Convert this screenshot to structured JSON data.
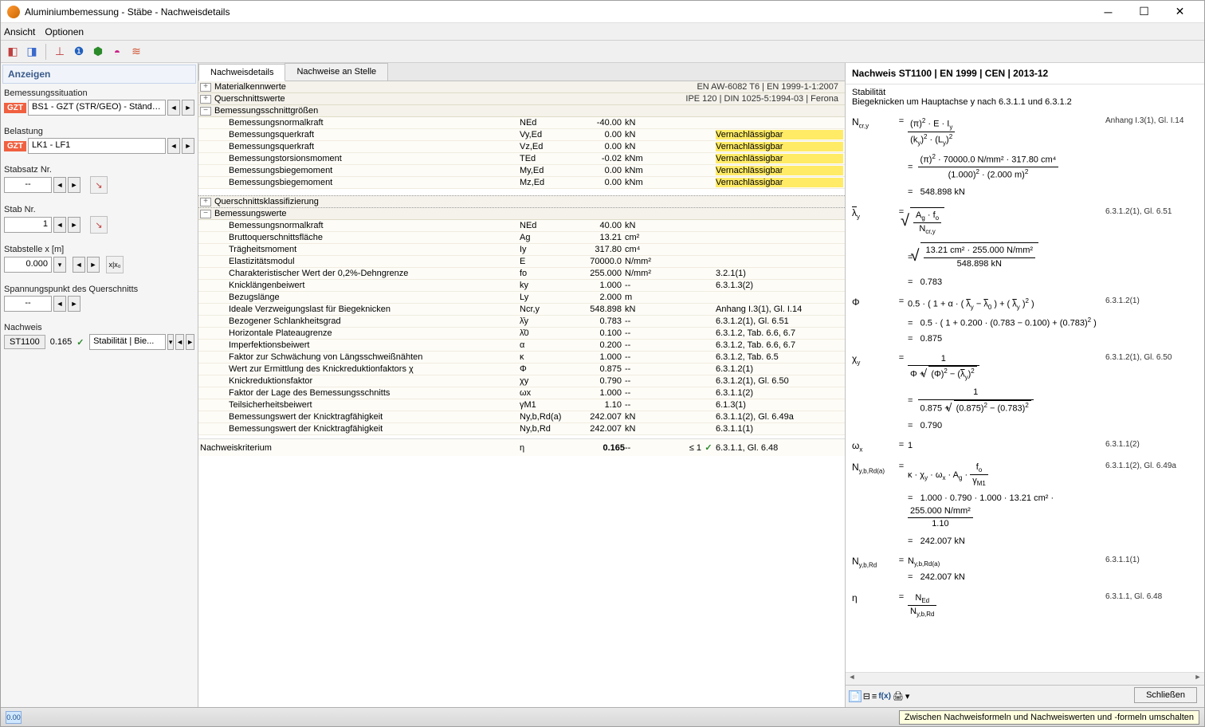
{
  "window": {
    "title": "Aluminiumbemessung - Stäbe - Nachweisdetails"
  },
  "menu": {
    "view": "Ansicht",
    "options": "Optionen"
  },
  "left": {
    "header": "Anzeigen",
    "situation_label": "Bemessungssituation",
    "situation_badge": "GZT",
    "situation_value": "BS1 - GZT (STR/GEO) - Ständig ...",
    "load_label": "Belastung",
    "load_badge": "GZT",
    "load_value": "LK1 - LF1",
    "stabsatz_label": "Stabsatz Nr.",
    "stabsatz_value": "--",
    "stab_label": "Stab Nr.",
    "stab_value": "1",
    "stabstelle_label": "Stabstelle x [m]",
    "stabstelle_value": "0.000",
    "spannung_label": "Spannungspunkt des Querschnitts",
    "spannung_value": "--",
    "nachweis_label": "Nachweis",
    "nachweis_id": "ST1100",
    "nachweis_ratio": "0.165",
    "nachweis_desc": "Stabilität | Bie..."
  },
  "tabs": {
    "details": "Nachweisdetails",
    "stelle": "Nachweise an Stelle"
  },
  "sections": {
    "material": {
      "title": "Materialkennwerte",
      "right": "EN AW-6082 T6 | EN 1999-1-1:2007"
    },
    "querschnitt": {
      "title": "Querschnittswerte",
      "right": "IPE 120 | DIN 1025-5:1994-03 | Ferona"
    },
    "schnitt": {
      "title": "Bemessungsschnittgrößen"
    },
    "klass": {
      "title": "Querschnittsklassifizierung"
    },
    "bemess": {
      "title": "Bemessungswerte"
    }
  },
  "schnitt_rows": [
    {
      "name": "Bemessungsnormalkraft",
      "sym": "NEd",
      "val": "-40.00",
      "unit": "kN",
      "hl": false,
      "ref": ""
    },
    {
      "name": "Bemessungsquerkraft",
      "sym": "Vy,Ed",
      "val": "0.00",
      "unit": "kN",
      "hl": true,
      "ref": "Vernachlässigbar"
    },
    {
      "name": "Bemessungsquerkraft",
      "sym": "Vz,Ed",
      "val": "0.00",
      "unit": "kN",
      "hl": true,
      "ref": "Vernachlässigbar"
    },
    {
      "name": "Bemessungstorsionsmoment",
      "sym": "TEd",
      "val": "-0.02",
      "unit": "kNm",
      "hl": true,
      "ref": "Vernachlässigbar"
    },
    {
      "name": "Bemessungsbiegemoment",
      "sym": "My,Ed",
      "val": "0.00",
      "unit": "kNm",
      "hl": true,
      "ref": "Vernachlässigbar"
    },
    {
      "name": "Bemessungsbiegemoment",
      "sym": "Mz,Ed",
      "val": "0.00",
      "unit": "kNm",
      "hl": true,
      "ref": "Vernachlässigbar"
    }
  ],
  "bemess_rows": [
    {
      "name": "Bemessungsnormalkraft",
      "sym": "NEd",
      "val": "40.00",
      "unit": "kN",
      "ref": ""
    },
    {
      "name": "Bruttoquerschnittsfläche",
      "sym": "Ag",
      "val": "13.21",
      "unit": "cm²",
      "ref": ""
    },
    {
      "name": "Trägheitsmoment",
      "sym": "Iy",
      "val": "317.80",
      "unit": "cm⁴",
      "ref": ""
    },
    {
      "name": "Elastizitätsmodul",
      "sym": "E",
      "val": "70000.0",
      "unit": "N/mm²",
      "ref": ""
    },
    {
      "name": "Charakteristischer Wert der 0,2%-Dehngrenze",
      "sym": "fo",
      "val": "255.000",
      "unit": "N/mm²",
      "ref": "3.2.1(1)"
    },
    {
      "name": "Knicklängenbeiwert",
      "sym": "ky",
      "val": "1.000",
      "unit": "--",
      "ref": "6.3.1.3(2)"
    },
    {
      "name": "Bezugslänge",
      "sym": "Ly",
      "val": "2.000",
      "unit": "m",
      "ref": ""
    },
    {
      "name": "Ideale Verzweigungslast für Biegeknicken",
      "sym": "Ncr,y",
      "val": "548.898",
      "unit": "kN",
      "ref": "Anhang I.3(1), Gl. I.14"
    },
    {
      "name": "Bezogener Schlankheitsgrad",
      "sym": "λ̄y",
      "val": "0.783",
      "unit": "--",
      "ref": "6.3.1.2(1), Gl. 6.51"
    },
    {
      "name": "Horizontale Plateaugrenze",
      "sym": "λ̄0",
      "val": "0.100",
      "unit": "--",
      "ref": "6.3.1.2, Tab. 6.6, 6.7"
    },
    {
      "name": "Imperfektionsbeiwert",
      "sym": "α",
      "val": "0.200",
      "unit": "--",
      "ref": "6.3.1.2, Tab. 6.6, 6.7"
    },
    {
      "name": "Faktor zur Schwächung von Längsschweißnähten",
      "sym": "κ",
      "val": "1.000",
      "unit": "--",
      "ref": "6.3.1.2, Tab. 6.5"
    },
    {
      "name": "Wert zur Ermittlung des Knickreduktionfaktors χ",
      "sym": "Φ",
      "val": "0.875",
      "unit": "--",
      "ref": "6.3.1.2(1)"
    },
    {
      "name": "Knickreduktionsfaktor",
      "sym": "χy",
      "val": "0.790",
      "unit": "--",
      "ref": "6.3.1.2(1), Gl. 6.50"
    },
    {
      "name": "Faktor der Lage des Bemessungsschnitts",
      "sym": "ωx",
      "val": "1.000",
      "unit": "--",
      "ref": "6.3.1.1(2)"
    },
    {
      "name": "Teilsicherheitsbeiwert",
      "sym": "γM1",
      "val": "1.10",
      "unit": "--",
      "ref": "6.1.3(1)"
    },
    {
      "name": "Bemessungswert der Knicktragfähigkeit",
      "sym": "Ny,b,Rd(a)",
      "val": "242.007",
      "unit": "kN",
      "ref": "6.3.1.1(2), Gl. 6.49a"
    },
    {
      "name": "Bemessungswert der Knicktragfähigkeit",
      "sym": "Ny,b,Rd",
      "val": "242.007",
      "unit": "kN",
      "ref": "6.3.1.1(1)"
    }
  ],
  "criterion": {
    "name": "Nachweiskriterium",
    "sym": "η",
    "val": "0.165",
    "unit": "--",
    "cond": "≤ 1",
    "ref": "6.3.1.1, Gl. 6.48"
  },
  "right": {
    "header": "Nachweis ST1100 | EN 1999 | CEN | 2013-12",
    "sub1": "Stabilität",
    "sub2": "Biegeknicken um Hauptachse y nach 6.3.1.1 und 6.3.1.2",
    "formulas": [
      {
        "sym": "Ncr,y",
        "ref": "Anhang I.3(1), Gl. I.14",
        "lines": [
          "(π)² · E · Iy / ( (ky)² · (Ly)² )",
          "(π)² · 70000.0 N/mm² · 317.80 cm⁴ / ( (1.000)² · (2.000 m)² )",
          "548.898 kN"
        ]
      },
      {
        "sym": "λ̄y",
        "ref": "6.3.1.2(1), Gl. 6.51",
        "lines": [
          "√( Ag · fo / Ncr,y )",
          "√( 13.21 cm² · 255.000 N/mm² / 548.898 kN )",
          "0.783"
        ]
      },
      {
        "sym": "Φ",
        "ref": "6.3.1.2(1)",
        "lines": [
          "0.5 · ( 1 + α · ( λ̄y − λ̄0 ) + ( λ̄y )² )",
          "0.5 · ( 1 + 0.200 · (0.783 − 0.100) + (0.783)² )",
          "0.875"
        ]
      },
      {
        "sym": "χy",
        "ref": "6.3.1.2(1), Gl. 6.50",
        "lines": [
          "1 / ( Φ + √( (Φ)² − (λ̄y)² ) )",
          "1 / ( 0.875 + √( (0.875)² − (0.783)² ) )",
          "0.790"
        ]
      },
      {
        "sym": "ωx",
        "ref": "6.3.1.1(2)",
        "lines": [
          "1"
        ]
      },
      {
        "sym": "Ny,b,Rd(a)",
        "ref": "6.3.1.1(2), Gl. 6.49a",
        "lines": [
          "κ · χy · ωx · Ag · fo / γM1",
          "1.000 · 0.790 · 1.000 · 13.21 cm² · 255.000 N/mm² / 1.10",
          "242.007 kN"
        ]
      },
      {
        "sym": "Ny,b,Rd",
        "ref": "6.3.1.1(1)",
        "lines": [
          "Ny,b,Rd(a)",
          "242.007 kN"
        ]
      },
      {
        "sym": "η",
        "ref": "6.3.1.1, Gl. 6.48",
        "lines": [
          "NEd / Ny,b,Rd"
        ]
      }
    ]
  },
  "tooltip": "Zwischen Nachweisformeln und Nachweiswerten und -formeln umschalten",
  "close_label": "Schließen",
  "status_icon": "0.00"
}
